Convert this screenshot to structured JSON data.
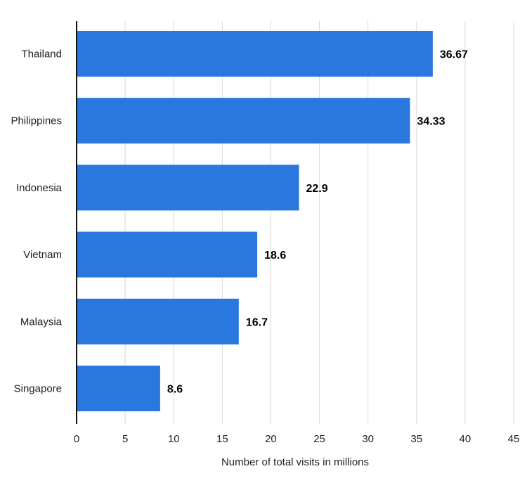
{
  "chart_data": {
    "type": "bar",
    "orientation": "horizontal",
    "title": "",
    "xlabel": "Number of total visits in millions",
    "ylabel": "",
    "categories": [
      "Thailand",
      "Philippines",
      "Indonesia",
      "Vietnam",
      "Malaysia",
      "Singapore"
    ],
    "values": [
      36.67,
      34.33,
      22.9,
      18.6,
      16.7,
      8.6
    ],
    "value_labels": [
      "36.67",
      "34.33",
      "22.9",
      "18.6",
      "16.7",
      "8.6"
    ],
    "xlim": [
      0,
      45
    ],
    "xticks": [
      0,
      5,
      10,
      15,
      20,
      25,
      30,
      35,
      40,
      45
    ],
    "grid": "vertical",
    "legend": "none",
    "bar_color": "#2a77de",
    "grid_color": "#d9d9d9",
    "axis_color": "#111111"
  }
}
